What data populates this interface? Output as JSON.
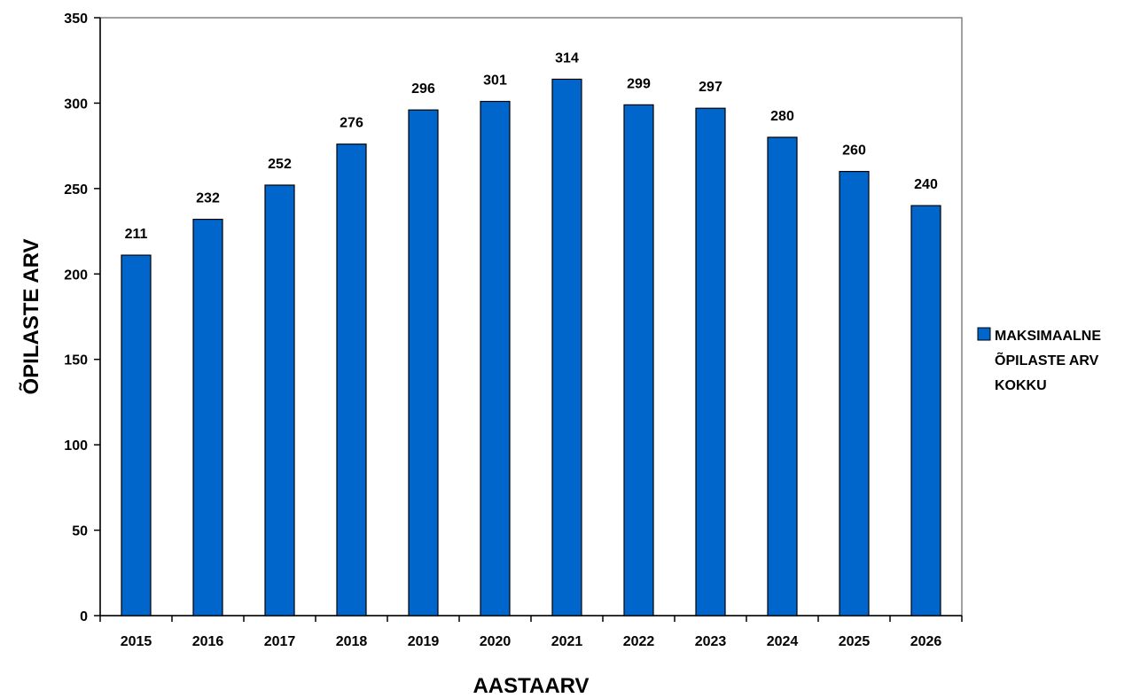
{
  "chart_data": {
    "type": "bar",
    "categories": [
      "2015",
      "2016",
      "2017",
      "2018",
      "2019",
      "2020",
      "2021",
      "2022",
      "2023",
      "2024",
      "2025",
      "2026"
    ],
    "series": [
      {
        "name": "MAKSIMAALNE ÕPILASTE ARV KOKKU",
        "values": [
          211,
          232,
          252,
          276,
          296,
          301,
          314,
          299,
          297,
          280,
          260,
          240
        ],
        "color": "#0066CC"
      }
    ],
    "legend_lines": [
      "MAKSIMAALNE",
      "ÕPILASTE ARV",
      "KOKKU"
    ],
    "title": "",
    "xlabel": "AASTAARV",
    "ylabel": "ÕPILASTE ARV",
    "ylim": [
      0,
      350
    ],
    "yticks": [
      0,
      50,
      100,
      150,
      200,
      250,
      300,
      350
    ],
    "grid": false,
    "legend_position": "right",
    "data_labels": true
  }
}
